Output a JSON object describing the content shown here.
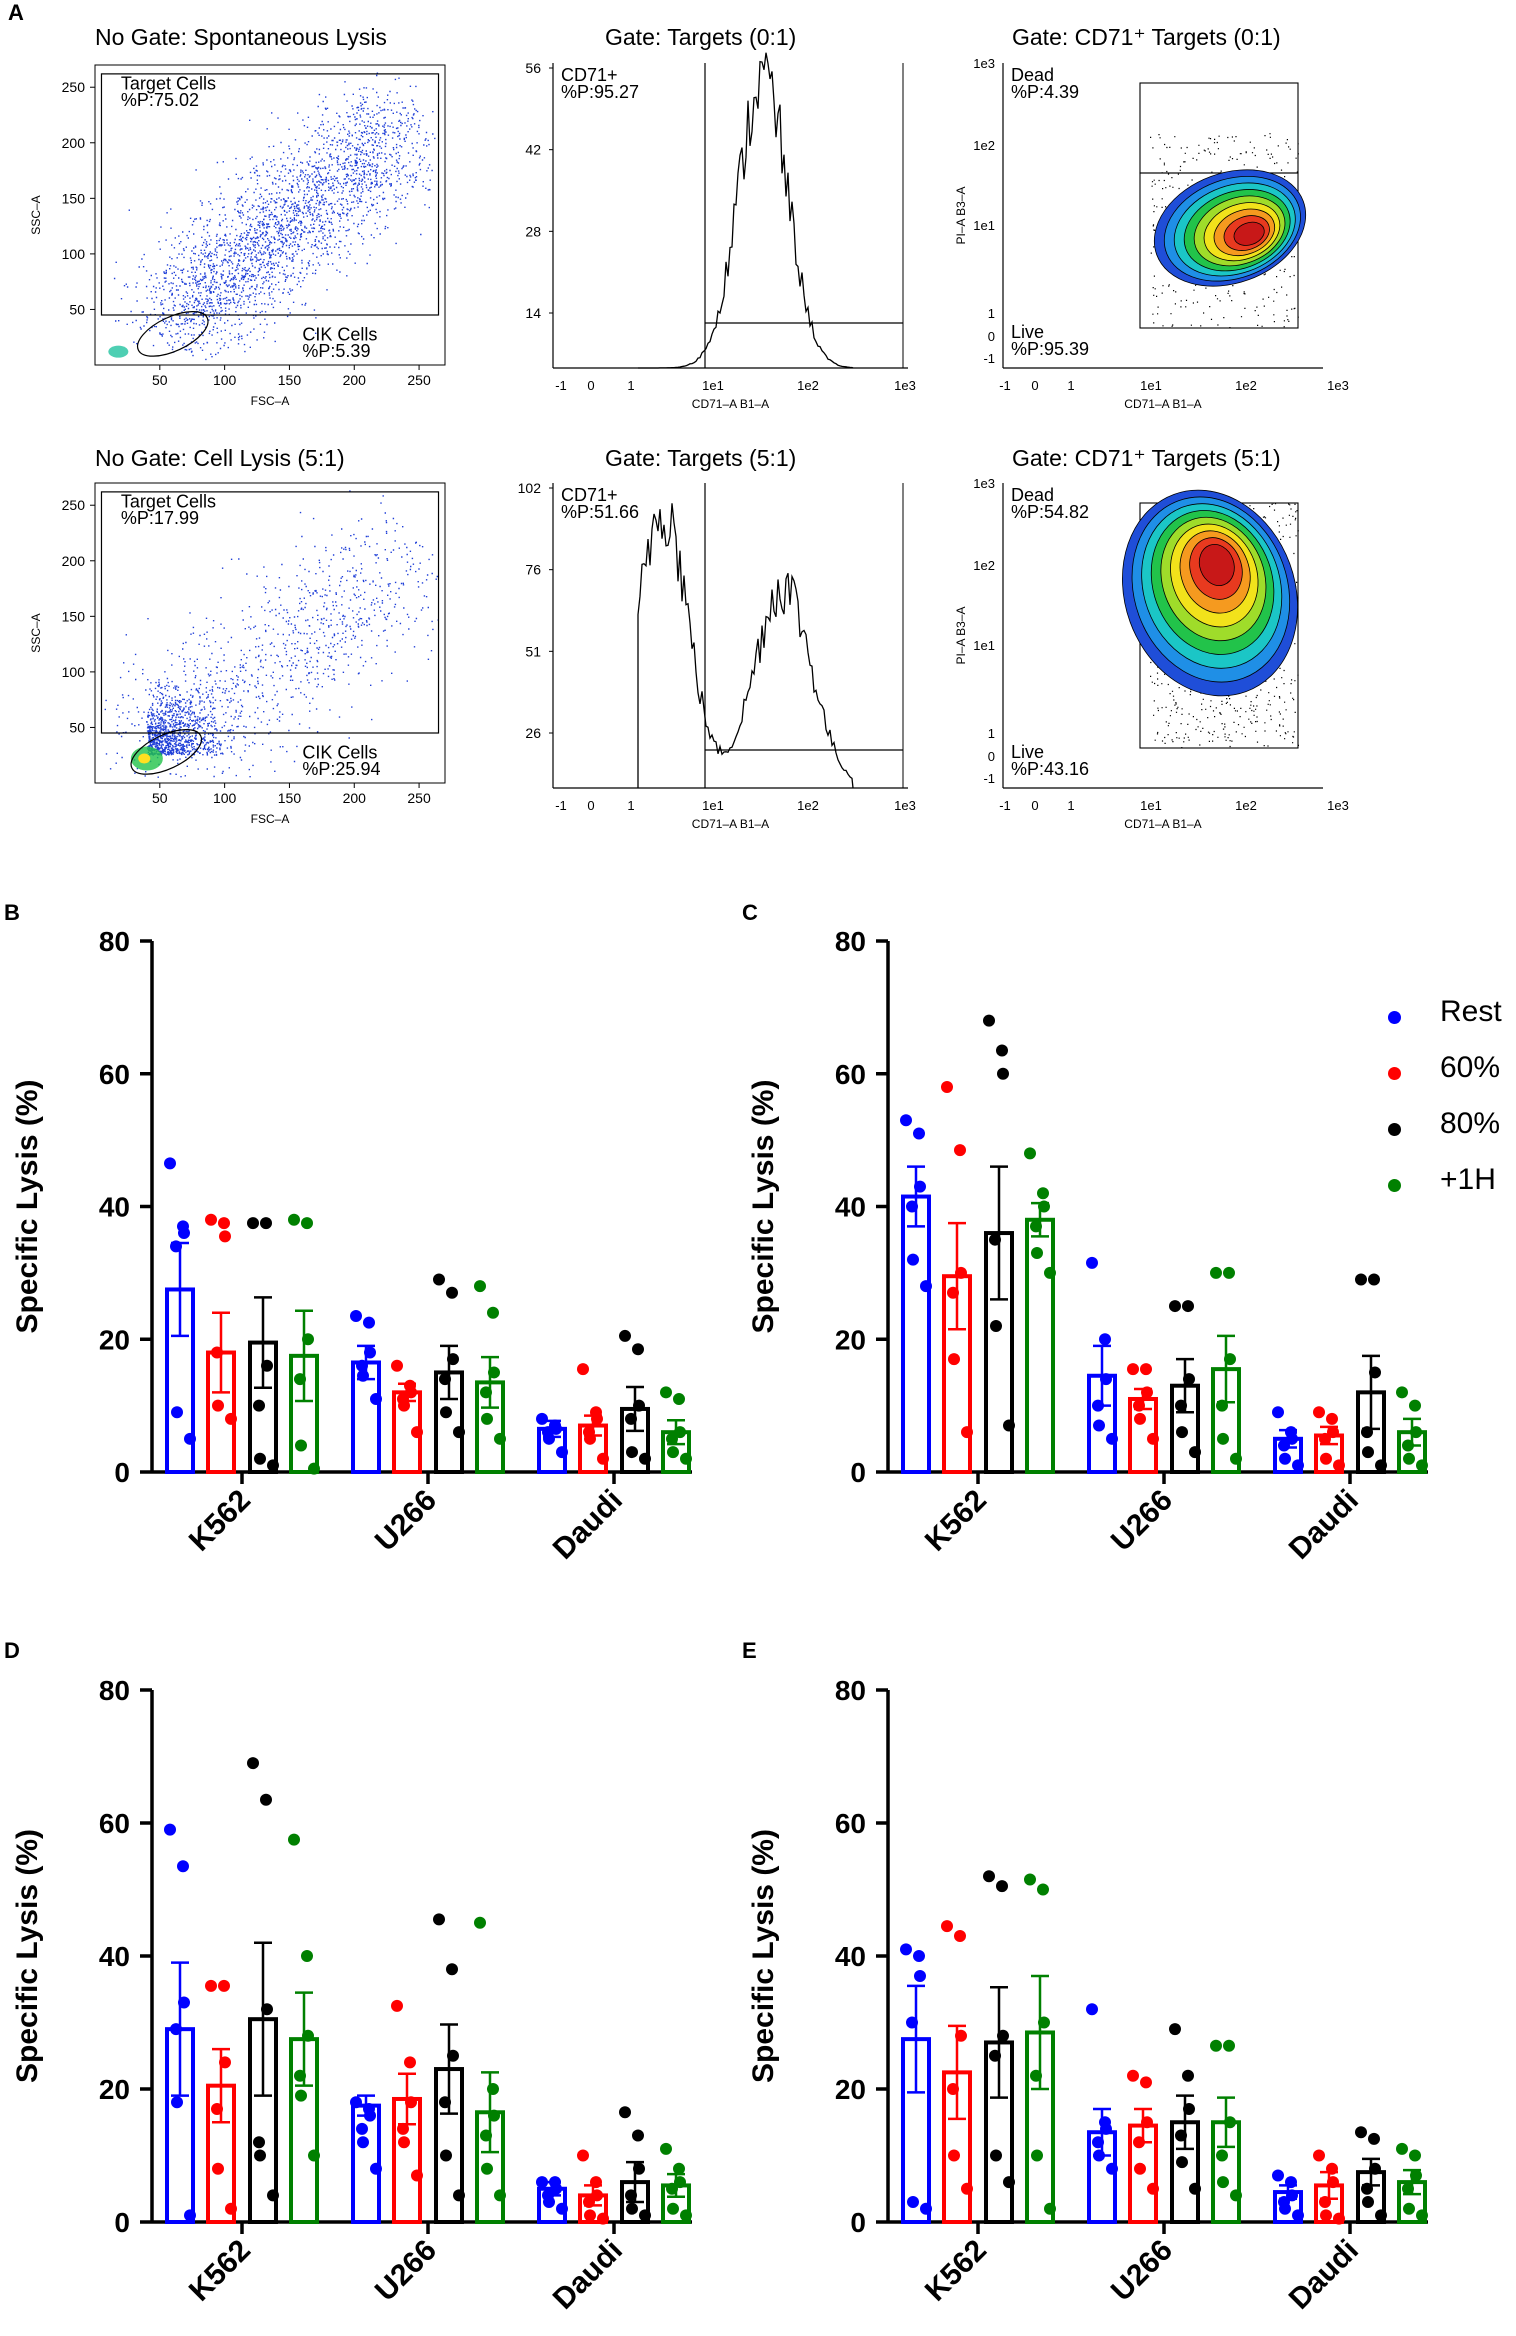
{
  "panel_labels": {
    "A": "A",
    "B": "B",
    "C": "C",
    "D": "D",
    "E": "E"
  },
  "colors": {
    "rest": "#0000ff",
    "p60": "#ff0000",
    "p80": "#000000",
    "h1": "#008000",
    "scatter": "#1f3fd8"
  },
  "legend": [
    {
      "label": "Rest",
      "color": "#0000ff"
    },
    {
      "label": "60%",
      "color": "#ff0000"
    },
    {
      "label": "80%",
      "color": "#000000"
    },
    {
      "label": "+1H",
      "color": "#008000"
    }
  ],
  "flow": {
    "row1": {
      "scatter": {
        "title": "No Gate: Spontaneous Lysis",
        "xlabel": "FSC–A",
        "ylabel": "SSC–A",
        "xticks": [
          "50",
          "100",
          "150",
          "200",
          "250"
        ],
        "yticks": [
          "50",
          "100",
          "150",
          "200",
          "250"
        ],
        "gate1_name": "Target Cells",
        "gate1_pct": "%P:75.02",
        "gate2_name": "CIK Cells",
        "gate2_pct": "%P:5.39"
      },
      "hist": {
        "title": "Gate: Targets (0:1)",
        "xlabel": "CD71–A B1–A",
        "gate_name": "CD71+",
        "gate_pct": "%P:95.27",
        "yticks": [
          "56",
          "42",
          "28",
          "14"
        ],
        "xticks": [
          "-1",
          "0",
          "1",
          "1e1",
          "1e2",
          "1e3"
        ]
      },
      "contour": {
        "title": "Gate: CD71⁺ Targets (0:1)",
        "xlabel": "CD71–A B1–A",
        "ylabel": "PI–A B3–A",
        "dead_name": "Dead",
        "dead_pct": "%P:4.39",
        "live_name": "Live",
        "live_pct": "%P:95.39",
        "yticks": [
          "1e3",
          "1e2",
          "1e1",
          "1",
          "0",
          "-1"
        ],
        "xticks": [
          "-1",
          "0",
          "1",
          "1e1",
          "1e2",
          "1e3"
        ]
      }
    },
    "row2": {
      "scatter": {
        "title": "No Gate: Cell Lysis (5:1)",
        "xlabel": "FSC–A",
        "ylabel": "SSC–A",
        "xticks": [
          "50",
          "100",
          "150",
          "200",
          "250"
        ],
        "yticks": [
          "50",
          "100",
          "150",
          "200",
          "250"
        ],
        "gate1_name": "Target Cells",
        "gate1_pct": "%P:17.99",
        "gate2_name": "CIK Cells",
        "gate2_pct": "%P:25.94"
      },
      "hist": {
        "title": "Gate: Targets (5:1)",
        "xlabel": "CD71–A B1–A",
        "gate_name": "CD71+",
        "gate_pct": "%P:51.66",
        "yticks": [
          "102",
          "76",
          "51",
          "26"
        ],
        "xticks": [
          "-1",
          "0",
          "1",
          "1e1",
          "1e2",
          "1e3"
        ]
      },
      "contour": {
        "title": "Gate: CD71⁺ Targets (5:1)",
        "xlabel": "CD71–A B1–A",
        "ylabel": "PI–A B3–A",
        "dead_name": "Dead",
        "dead_pct": "%P:54.82",
        "live_name": "Live",
        "live_pct": "%P:43.16",
        "yticks": [
          "1e3",
          "1e2",
          "1e1",
          "1",
          "0",
          "-1"
        ],
        "xticks": [
          "-1",
          "0",
          "1",
          "1e1",
          "1e2",
          "1e3"
        ]
      }
    }
  },
  "chart_data": [
    {
      "panel": "B",
      "type": "bar",
      "ylabel": "Specific Lysis (%)",
      "ylim": [
        0,
        80
      ],
      "yticks": [
        "0",
        "20",
        "40",
        "60",
        "80"
      ],
      "categories": [
        "K562",
        "U266",
        "Daudi"
      ],
      "series": [
        {
          "name": "Rest",
          "values": [
            27.5,
            16.5,
            6.5
          ],
          "errors": [
            7,
            2.5,
            1.2
          ],
          "points": [
            [
              46.5,
              37,
              36,
              34,
              9,
              5
            ],
            [
              23.5,
              22.5,
              18,
              16,
              14.5,
              11
            ],
            [
              8,
              7,
              6.5,
              6,
              5,
              3
            ]
          ]
        },
        {
          "name": "60%",
          "values": [
            18,
            12,
            7
          ],
          "errors": [
            6,
            1.3,
            1.5
          ],
          "points": [
            [
              38,
              37.5,
              35.5,
              18,
              10,
              8
            ],
            [
              16,
              13,
              12,
              11,
              10,
              6
            ],
            [
              15.5,
              9,
              8,
              6,
              5,
              2
            ]
          ]
        },
        {
          "name": "80%",
          "values": [
            19.5,
            15,
            9.5
          ],
          "errors": [
            6.8,
            4,
            3.3
          ],
          "points": [
            [
              37.5,
              37.5,
              16,
              10,
              2,
              1
            ],
            [
              29,
              27,
              17,
              14,
              9,
              6
            ],
            [
              20.5,
              18.5,
              10,
              8,
              3,
              2
            ]
          ]
        },
        {
          "name": "+1H",
          "values": [
            17.5,
            13.5,
            6
          ],
          "errors": [
            6.8,
            3.8,
            1.8
          ],
          "points": [
            [
              38,
              37.5,
              20,
              14,
              4,
              0.5
            ],
            [
              28,
              24,
              15,
              12,
              8,
              5
            ],
            [
              12,
              11,
              6,
              5,
              3,
              2
            ]
          ]
        }
      ]
    },
    {
      "panel": "C",
      "type": "bar",
      "ylabel": "Specific Lysis (%)",
      "ylim": [
        0,
        80
      ],
      "yticks": [
        "0",
        "20",
        "40",
        "60",
        "80"
      ],
      "categories": [
        "K562",
        "U266",
        "Daudi"
      ],
      "series": [
        {
          "name": "Rest",
          "values": [
            41.5,
            14.5,
            5
          ],
          "errors": [
            4.5,
            4.5,
            1.3
          ],
          "points": [
            [
              53,
              51,
              43,
              40,
              32,
              28
            ],
            [
              31.5,
              20,
              14,
              10,
              7,
              5
            ],
            [
              9,
              6,
              5,
              4,
              2,
              1
            ]
          ]
        },
        {
          "name": "60%",
          "values": [
            29.5,
            11,
            5.5
          ],
          "errors": [
            8,
            1.5,
            1.3
          ],
          "points": [
            [
              58,
              48.5,
              30,
              27,
              17,
              6
            ],
            [
              15.5,
              15.5,
              12,
              10,
              8,
              5
            ],
            [
              9,
              8,
              6,
              5,
              2,
              1
            ]
          ]
        },
        {
          "name": "80%",
          "values": [
            36,
            13,
            12
          ],
          "errors": [
            10,
            4,
            5.5
          ],
          "points": [
            [
              68,
              63.5,
              60,
              35,
              22,
              7
            ],
            [
              25,
              25,
              14,
              10,
              6,
              3
            ],
            [
              29,
              29,
              15,
              6,
              3,
              1
            ]
          ]
        },
        {
          "name": "+1H",
          "values": [
            38,
            15.5,
            6
          ],
          "errors": [
            2.5,
            5,
            2
          ],
          "points": [
            [
              48,
              42,
              40,
              37,
              33,
              30
            ],
            [
              30,
              30,
              17,
              10,
              5,
              2
            ],
            [
              12,
              10,
              6,
              4,
              2,
              1
            ]
          ]
        }
      ]
    },
    {
      "panel": "D",
      "type": "bar",
      "ylabel": "Specific Lysis (%)",
      "ylim": [
        0,
        80
      ],
      "yticks": [
        "0",
        "20",
        "40",
        "60",
        "80"
      ],
      "categories": [
        "K562",
        "U266",
        "Daudi"
      ],
      "series": [
        {
          "name": "Rest",
          "values": [
            29,
            17.5,
            5
          ],
          "errors": [
            10,
            1.5,
            1
          ],
          "points": [
            [
              59,
              53.5,
              33,
              29,
              18,
              1
            ],
            [
              18,
              17,
              16,
              14,
              12,
              8
            ],
            [
              6,
              6,
              5,
              4,
              3,
              2
            ]
          ]
        },
        {
          "name": "60%",
          "values": [
            20.5,
            18.5,
            4
          ],
          "errors": [
            5.5,
            3.8,
            1.5
          ],
          "points": [
            [
              35.5,
              35.5,
              24,
              17,
              8,
              2
            ],
            [
              32.5,
              24,
              18,
              14,
              12,
              7
            ],
            [
              10,
              6,
              4,
              3,
              1,
              0.5
            ]
          ]
        },
        {
          "name": "80%",
          "values": [
            30.5,
            23,
            6
          ],
          "errors": [
            11.5,
            6.7,
            3
          ],
          "points": [
            [
              69,
              63.5,
              32,
              12,
              10,
              4
            ],
            [
              45.5,
              38,
              25,
              18,
              10,
              4
            ],
            [
              16.5,
              13,
              8,
              4,
              2,
              1
            ]
          ]
        },
        {
          "name": "+1H",
          "values": [
            27.5,
            16.5,
            5.5
          ],
          "errors": [
            7,
            6,
            1.7
          ],
          "points": [
            [
              57.5,
              40,
              28,
              22,
              19,
              10
            ],
            [
              45,
              20,
              16,
              13,
              8,
              4
            ],
            [
              11,
              8,
              6,
              5,
              2,
              1
            ]
          ]
        }
      ]
    },
    {
      "panel": "E",
      "type": "bar",
      "ylabel": "Specific Lysis (%)",
      "ylim": [
        0,
        80
      ],
      "yticks": [
        "0",
        "20",
        "40",
        "60",
        "80"
      ],
      "categories": [
        "K562",
        "U266",
        "Daudi"
      ],
      "series": [
        {
          "name": "Rest",
          "values": [
            27.5,
            13.5,
            4.5
          ],
          "errors": [
            8,
            3.5,
            1
          ],
          "points": [
            [
              41,
              40,
              37,
              30,
              3,
              2
            ],
            [
              32,
              15,
              14,
              12,
              10,
              8
            ],
            [
              7,
              6,
              4,
              3,
              2,
              1
            ]
          ]
        },
        {
          "name": "60%",
          "values": [
            22.5,
            14.5,
            5.5
          ],
          "errors": [
            7,
            2.5,
            2
          ],
          "points": [
            [
              44.5,
              43,
              28,
              20,
              10,
              5
            ],
            [
              22,
              21,
              15,
              12,
              8,
              5
            ],
            [
              10,
              8,
              6,
              3,
              1,
              0.5
            ]
          ]
        },
        {
          "name": "80%",
          "values": [
            27,
            15,
            7.5
          ],
          "errors": [
            8.3,
            4,
            2
          ],
          "points": [
            [
              52,
              50.5,
              28,
              25,
              10,
              6
            ],
            [
              29,
              22,
              17,
              13,
              9,
              5
            ],
            [
              13.5,
              12.5,
              8,
              5,
              3,
              1
            ]
          ]
        },
        {
          "name": "+1H",
          "values": [
            28.5,
            15,
            6
          ],
          "errors": [
            8.5,
            3.7,
            1.8
          ],
          "points": [
            [
              51.5,
              50,
              30,
              22,
              10,
              2
            ],
            [
              26.5,
              26.5,
              15,
              10,
              6,
              4
            ],
            [
              11,
              10,
              7,
              5,
              2,
              1
            ]
          ]
        }
      ]
    }
  ]
}
